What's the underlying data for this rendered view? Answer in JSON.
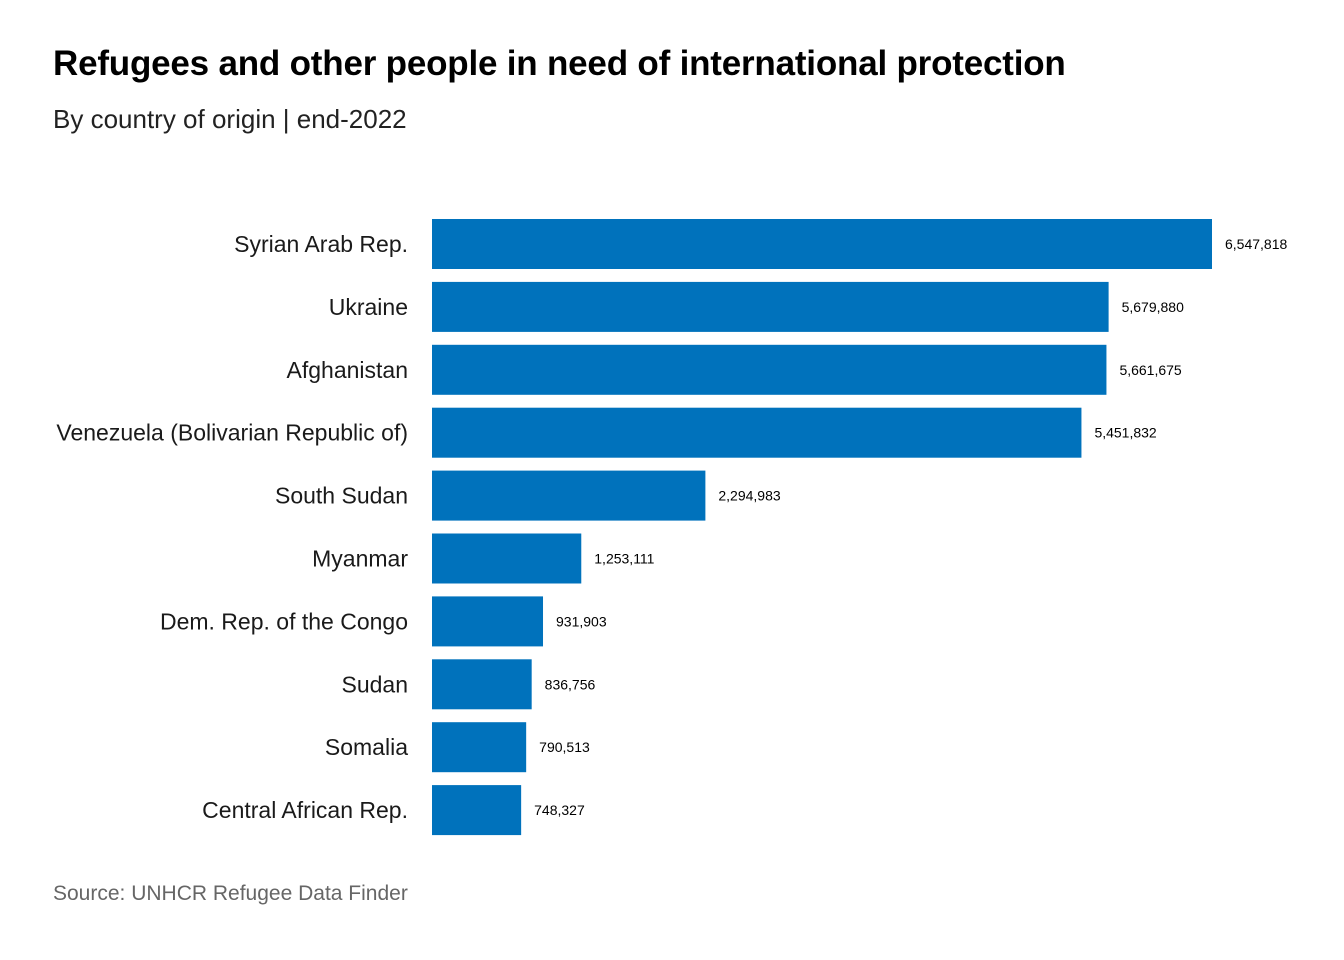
{
  "header": {
    "title": "Refugees and other people in need of international protection",
    "subtitle": "By country of origin | end-2022"
  },
  "footer": {
    "source": "Source: UNHCR Refugee Data Finder"
  },
  "colors": {
    "bar": "#0072BC"
  },
  "chart_data": {
    "type": "bar",
    "orientation": "horizontal",
    "title": "Refugees and other people in need of international protection",
    "subtitle": "By country of origin | end-2022",
    "xlabel": "",
    "ylabel": "",
    "grid": false,
    "xlim": [
      0,
      6547818
    ],
    "categories": [
      "Syrian Arab Rep.",
      "Ukraine",
      "Afghanistan",
      "Venezuela (Bolivarian Republic of)",
      "South Sudan",
      "Myanmar",
      "Dem. Rep. of the Congo",
      "Sudan",
      "Somalia",
      "Central African Rep."
    ],
    "values": [
      6547818,
      5679880,
      5661675,
      5451832,
      2294983,
      1253111,
      931903,
      836756,
      790513,
      748327
    ],
    "value_labels": [
      "6,547,818",
      "5,679,880",
      "5,661,675",
      "5,451,832",
      "2,294,983",
      "1,253,111",
      "931,903",
      "836,756",
      "790,513",
      "748,327"
    ]
  }
}
